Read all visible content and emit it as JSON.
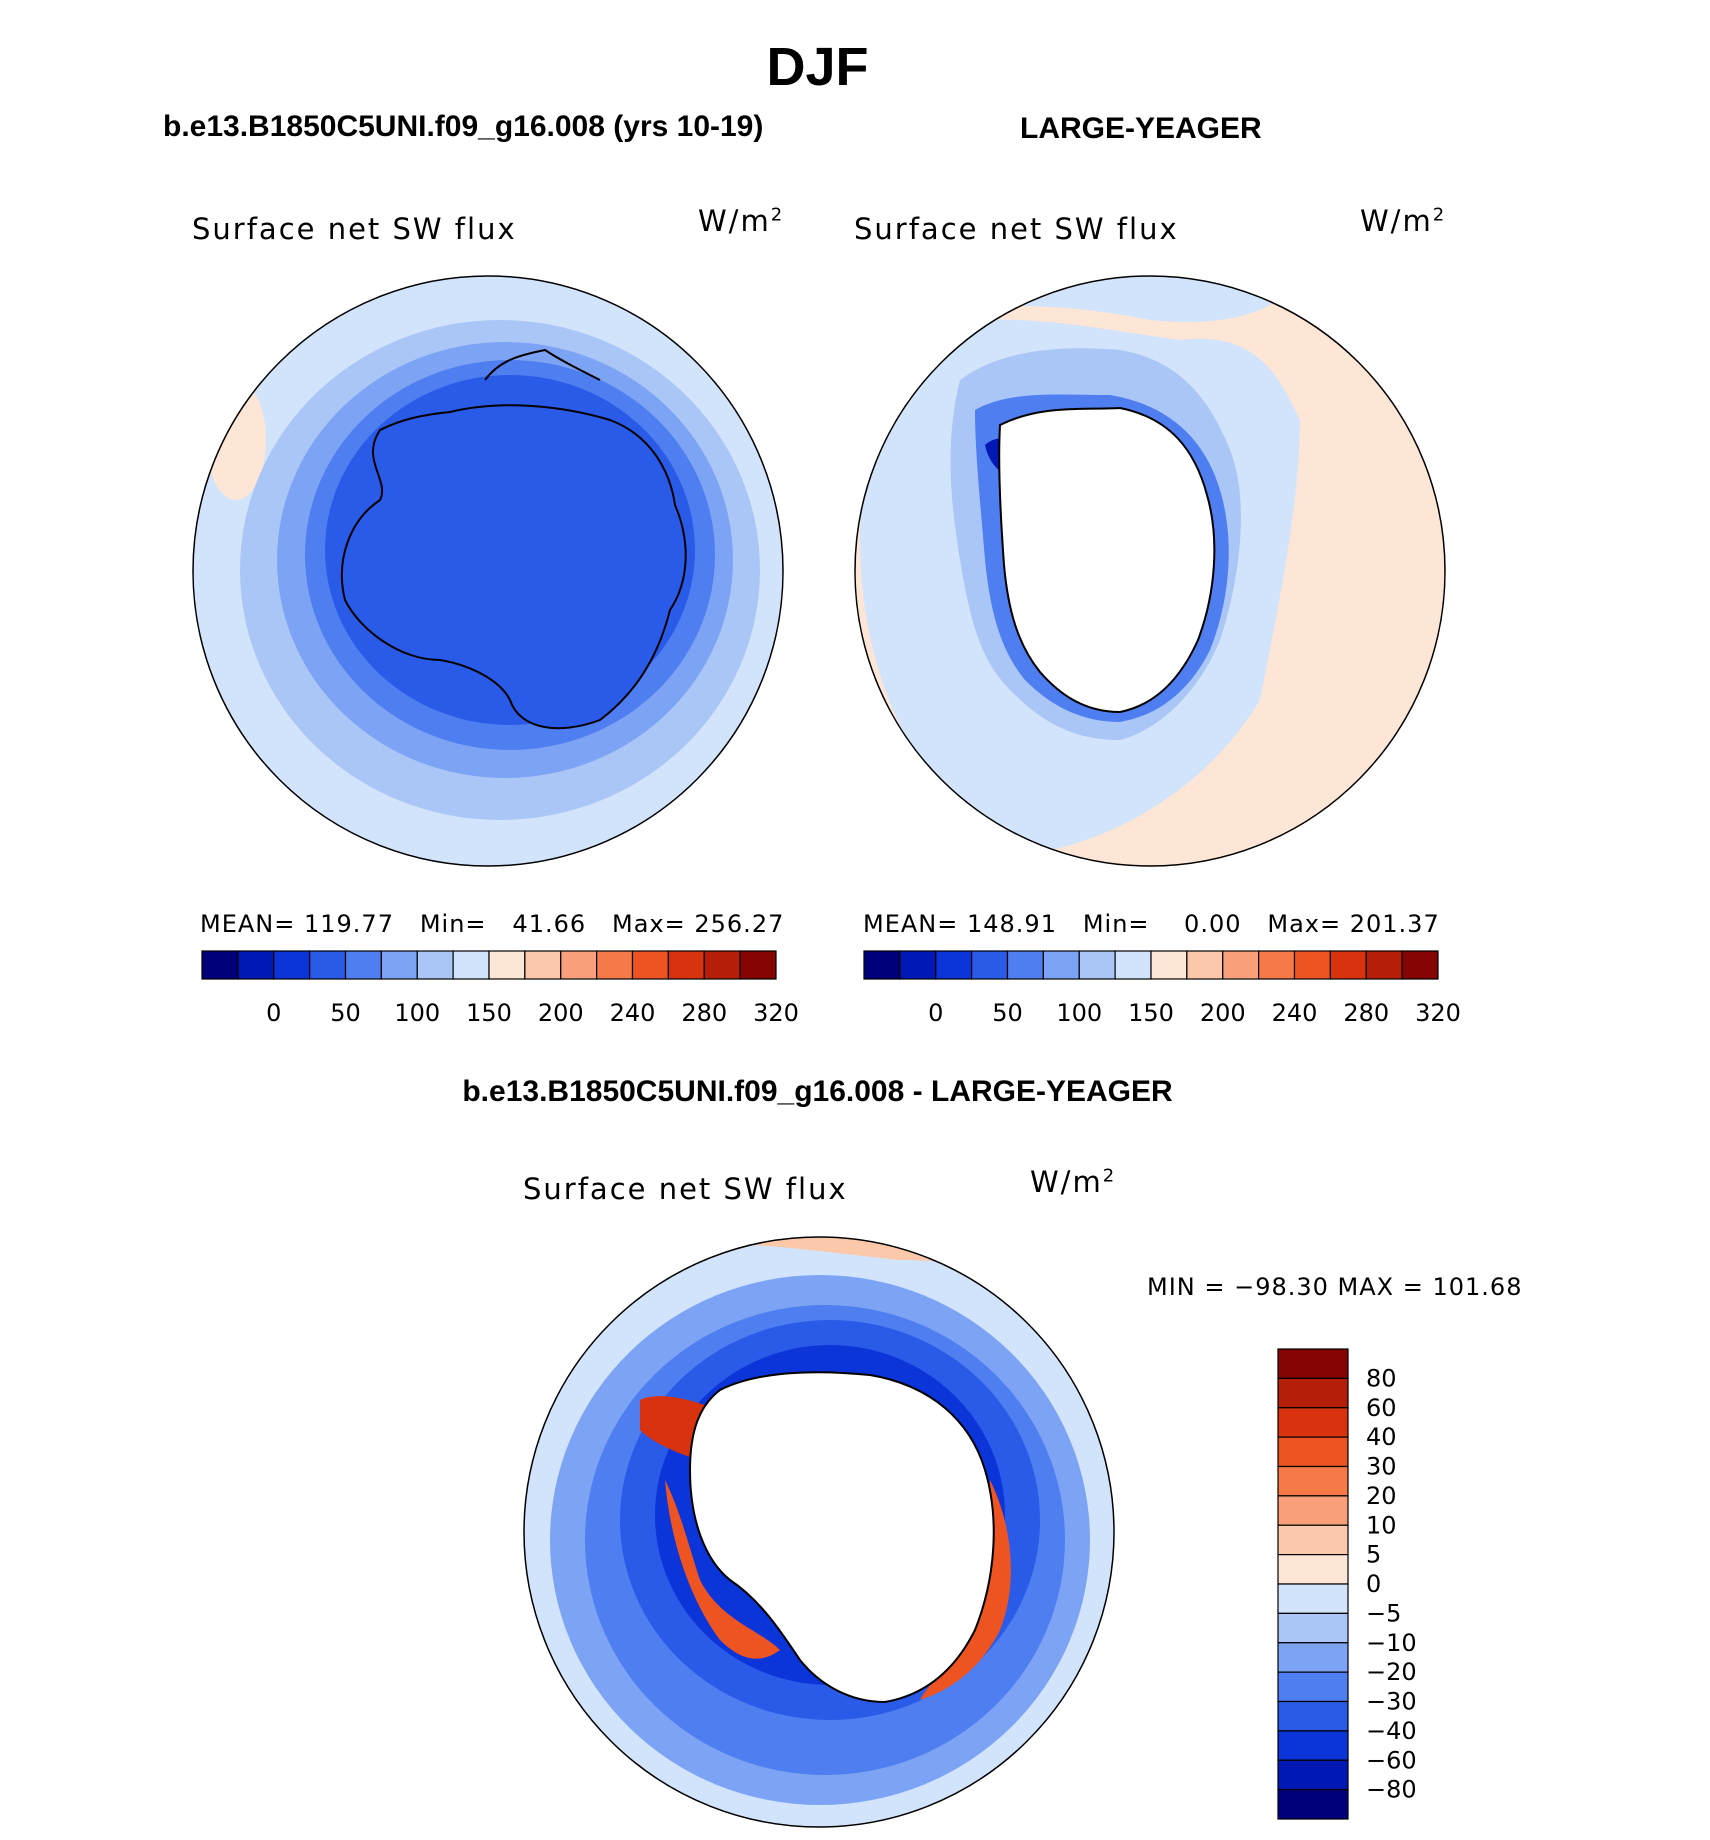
{
  "figure": {
    "season": "DJF",
    "panel_left": {
      "case": "b.e13.B1850C5UNI.f09_g16.008 (yrs 10-19)",
      "variable": "Surface net SW flux",
      "units": "W/m",
      "units_sup": "2",
      "stats": "MEAN= 119.77   Min=   41.66   Max= 256.27"
    },
    "panel_right": {
      "case": "LARGE-YEAGER",
      "variable": "Surface net SW flux",
      "units": "W/m",
      "units_sup": "2",
      "stats": "MEAN= 148.91   Min=    0.00   Max= 201.37"
    },
    "panel_diff": {
      "case": "b.e13.B1850C5UNI.f09_g16.008 - LARGE-YEAGER",
      "variable": "Surface net SW flux",
      "units": "W/m",
      "units_sup": "2",
      "stats": "MIN = −98.30 MAX = 101.68"
    }
  },
  "colorbar_abs": {
    "colors": [
      "#00007a",
      "#0018b4",
      "#0b35d8",
      "#2a5be8",
      "#4f7ef0",
      "#7da4f4",
      "#aac6f7",
      "#d2e4fb",
      "#fde6d6",
      "#fcc8aa",
      "#f9a07a",
      "#f67a48",
      "#ee5322",
      "#d8330e",
      "#b51e08",
      "#850505"
    ],
    "labels": [
      "0",
      "50",
      "100",
      "150",
      "200",
      "240",
      "280",
      "320"
    ]
  },
  "colorbar_diff": {
    "colors": [
      "#850505",
      "#b51e08",
      "#d8330e",
      "#ee5322",
      "#f67a48",
      "#f9a07a",
      "#fcc8aa",
      "#fde6d6",
      "#d2e4fb",
      "#aac6f7",
      "#7da4f4",
      "#4f7ef0",
      "#2a5be8",
      "#0b35d8",
      "#0018b4",
      "#00007a"
    ],
    "labels": [
      "80",
      "60",
      "40",
      "30",
      "20",
      "10",
      "5",
      "0",
      "−5",
      "−10",
      "−20",
      "−30",
      "−40",
      "−60",
      "−80"
    ]
  }
}
